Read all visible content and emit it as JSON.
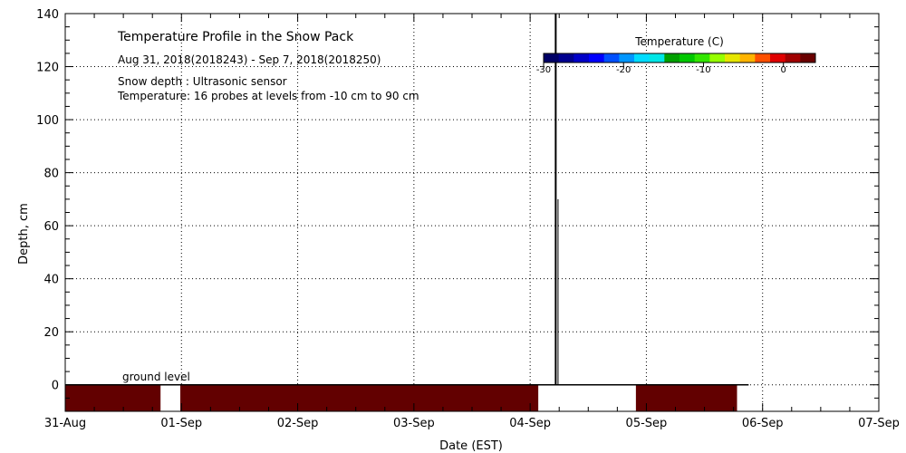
{
  "chart_data": {
    "type": "heatmap",
    "title": "Temperature Profile in the Snow Pack",
    "subtitle": "Aug 31, 2018(2018243) - Sep  7, 2018(2018250)",
    "notes": [
      "Snow depth : Ultrasonic sensor",
      "Temperature: 16 probes at levels from -10 cm to 90 cm"
    ],
    "xlabel": "Date (EST)",
    "ylabel": "Depth, cm",
    "x_ticks": [
      "31-Aug",
      "01-Sep",
      "02-Sep",
      "03-Sep",
      "04-Sep",
      "05-Sep",
      "06-Sep",
      "07-Sep"
    ],
    "y_ticks": [
      0,
      20,
      40,
      60,
      80,
      100,
      120,
      140
    ],
    "xlim_days": [
      0,
      7
    ],
    "ylim": [
      -10,
      140
    ],
    "grid": true,
    "ground_label": "ground level",
    "colorbar": {
      "title": "Temperature (C)",
      "range": [
        -30,
        4
      ],
      "tick_values": [
        -30,
        -20,
        -10,
        0
      ],
      "tick_labels": [
        "-30",
        "-20",
        "-10",
        "0"
      ],
      "colors": [
        "#000066",
        "#00008f",
        "#0000c8",
        "#0000ff",
        "#0050ff",
        "#0096ff",
        "#00dcff",
        "#00e6e6",
        "#00a000",
        "#00c800",
        "#32e600",
        "#96ff00",
        "#e6e600",
        "#ffb400",
        "#ff5000",
        "#e00000",
        "#a00000",
        "#6a0000"
      ],
      "placement": "top-right"
    },
    "soil_temperature_bands": [
      {
        "start_day": 0.0,
        "end_day": 0.82,
        "depth_top": 0,
        "depth_bottom": -10,
        "color": "#620000"
      },
      {
        "start_day": 0.99,
        "end_day": 4.07,
        "depth_top": 0,
        "depth_bottom": -10,
        "color": "#620000"
      },
      {
        "start_day": 4.91,
        "end_day": 5.78,
        "depth_top": 0,
        "depth_bottom": -10,
        "color": "#620000"
      }
    ],
    "ground_line": {
      "start_day": 0.0,
      "end_day": 5.88,
      "depth": 0
    },
    "snow_depth_spikes": [
      {
        "day": 4.22,
        "depth": 140
      },
      {
        "day": 4.24,
        "depth": 70
      }
    ]
  }
}
